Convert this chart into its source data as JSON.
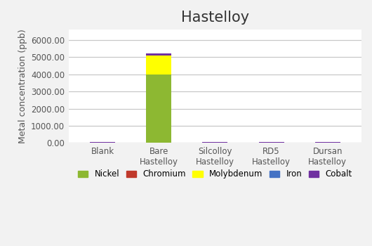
{
  "title": "Hastelloy",
  "ylabel": "Metal concentration (ppb)",
  "categories": [
    "Blank",
    "Bare\nHastelloy",
    "Silcolloy\nHastelloy",
    "RD5\nHastelloy",
    "Dursan\nHastelloy"
  ],
  "series": {
    "Nickel": [
      0,
      3980,
      0,
      0,
      0
    ],
    "Chromium": [
      0,
      5,
      0,
      0,
      0
    ],
    "Molybdenum": [
      0,
      1100,
      0,
      0,
      0
    ],
    "Iron": [
      0,
      5,
      0,
      0,
      0
    ],
    "Cobalt": [
      55,
      110,
      55,
      55,
      60
    ]
  },
  "colors": {
    "Nickel": "#8db832",
    "Chromium": "#c0392b",
    "Molybdenum": "#ffff00",
    "Iron": "#4472c4",
    "Cobalt": "#7030a0"
  },
  "ylim": [
    0,
    6600
  ],
  "yticks": [
    0,
    1000,
    2000,
    3000,
    4000,
    5000,
    6000
  ],
  "ytick_labels": [
    "0.00",
    "1000.00",
    "2000.00",
    "3000.00",
    "4000.00",
    "5000.00",
    "6000.00"
  ],
  "background_color": "#f2f2f2",
  "plot_bg_color": "#ffffff",
  "grid_color": "#c8c8c8",
  "title_fontsize": 15,
  "axis_label_fontsize": 9,
  "tick_fontsize": 8.5,
  "legend_fontsize": 8.5,
  "bar_width": 0.45,
  "figsize": [
    5.3,
    3.5
  ],
  "dpi": 100
}
